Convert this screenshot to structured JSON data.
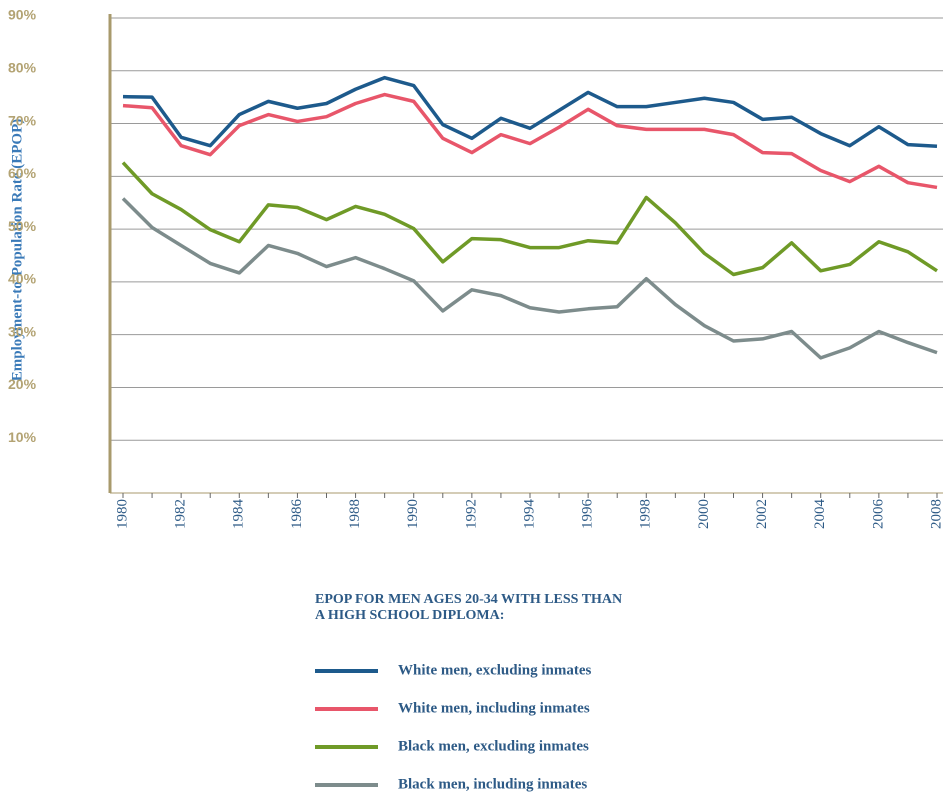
{
  "chart_data": {
    "type": "line",
    "y_label": "Employment-to-Population Rate (EPOP)",
    "legend_title": [
      "EPOP FOR MEN AGES 20-34 WITH LESS THAN",
      "A HIGH SCHOOL DIPLOMA:"
    ],
    "x": [
      1980,
      1981,
      1982,
      1983,
      1984,
      1985,
      1986,
      1987,
      1988,
      1989,
      1990,
      1991,
      1992,
      1993,
      1994,
      1995,
      1996,
      1997,
      1998,
      1999,
      2000,
      2001,
      2002,
      2003,
      2004,
      2005,
      2006,
      2007,
      2008
    ],
    "xlim": [
      1980,
      2008
    ],
    "xticks": [
      1980,
      1982,
      1984,
      1986,
      1988,
      1990,
      1992,
      1994,
      1996,
      1998,
      2000,
      2002,
      2004,
      2006,
      2008
    ],
    "ylim": [
      0,
      90
    ],
    "yticks": [
      {
        "value": 10,
        "label": "10%"
      },
      {
        "value": 20,
        "label": "20%"
      },
      {
        "value": 30,
        "label": "30%"
      },
      {
        "value": 40,
        "label": "40%"
      },
      {
        "value": 50,
        "label": "50%"
      },
      {
        "value": 60,
        "label": "60%"
      },
      {
        "value": 70,
        "label": "70%"
      },
      {
        "value": 80,
        "label": "80%"
      },
      {
        "value": 90,
        "label": "90%"
      }
    ],
    "grid": true,
    "series": [
      {
        "name": "White men, excluding inmates",
        "color": "#1d5a8c",
        "values": [
          75.1,
          75,
          67.4,
          65.8,
          71.7,
          74.2,
          72.9,
          73.8,
          76.5,
          78.7,
          77.2,
          69.8,
          67.2,
          71,
          69.1,
          72.5,
          75.9,
          73.2,
          73.2,
          74,
          74.8,
          74,
          70.8,
          71.2,
          68.1,
          65.8,
          69.4,
          66,
          65.7
        ]
      },
      {
        "name": "White men, including inmates",
        "color": "#e8566a",
        "values": [
          73.4,
          73,
          65.8,
          64.1,
          69.6,
          71.7,
          70.4,
          71.3,
          73.8,
          75.5,
          74.2,
          67.2,
          64.5,
          67.9,
          66.2,
          69.3,
          72.7,
          69.6,
          68.9,
          68.9,
          68.9,
          67.9,
          64.5,
          64.3,
          61.1,
          59,
          61.9,
          58.8,
          57.9
        ]
      },
      {
        "name": "Black men, excluding inmates",
        "color": "#6f9a27",
        "values": [
          62.6,
          56.7,
          53.7,
          49.9,
          47.6,
          54.6,
          54.1,
          51.8,
          54.3,
          52.8,
          50.1,
          43.8,
          48.2,
          48,
          46.5,
          46.5,
          47.8,
          47.4,
          56,
          51.2,
          45.4,
          41.4,
          42.7,
          47.4,
          42.1,
          43.3,
          47.6,
          45.7,
          42.1
        ]
      },
      {
        "name": "Black men, including inmates",
        "color": "#7d8c8c",
        "values": [
          55.8,
          50.3,
          46.9,
          43.5,
          41.7,
          46.9,
          45.4,
          42.9,
          44.6,
          42.5,
          40.2,
          34.5,
          38.5,
          37.4,
          35.1,
          34.3,
          34.9,
          35.3,
          40.6,
          35.7,
          31.7,
          28.8,
          29.2,
          30.6,
          25.6,
          27.5,
          30.6,
          28.5,
          26.6
        ]
      }
    ]
  }
}
